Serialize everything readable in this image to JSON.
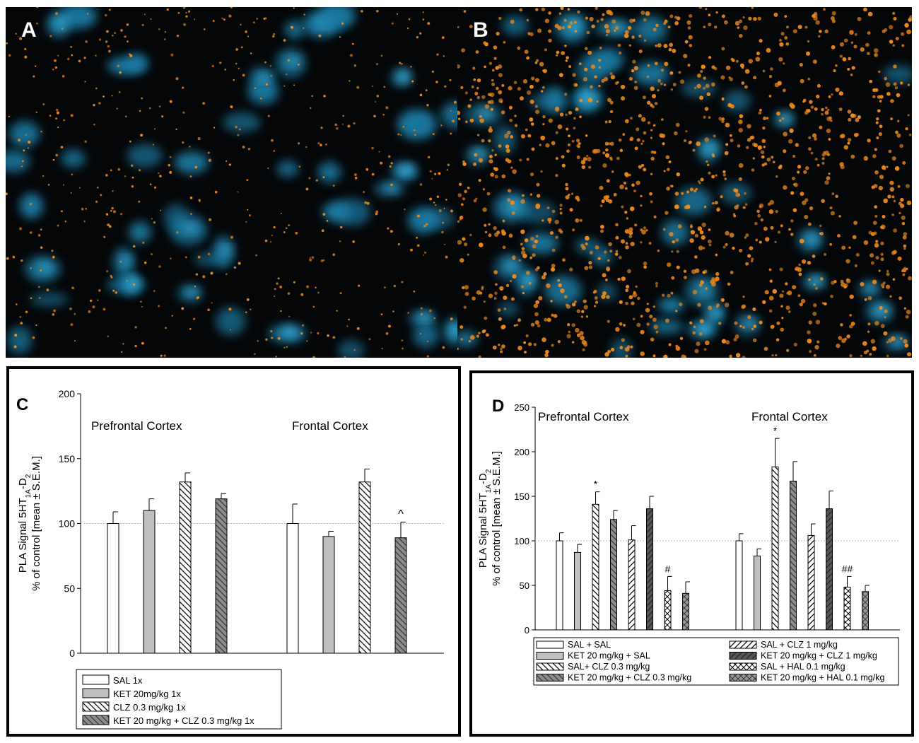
{
  "panels": {
    "a_label": "A",
    "b_label": "B",
    "c_label": "C",
    "d_label": "D"
  },
  "chart_data": [
    {
      "panel": "C",
      "type": "bar",
      "ylabel_lines": [
        "PLA Signal 5HT1A-D2",
        "% of control [mean ± S.E.M.]"
      ],
      "ylim": [
        0,
        200
      ],
      "yticks": [
        0,
        50,
        100,
        150,
        200
      ],
      "reference_line": 100,
      "groups": [
        "Prefrontal Cortex",
        "Frontal Cortex"
      ],
      "series": [
        {
          "name": "SAL 1x",
          "values": [
            100,
            100
          ],
          "errors": [
            9,
            15
          ],
          "fill": "#ffffff",
          "pattern": "none",
          "annotations": [
            "",
            ""
          ]
        },
        {
          "name": "KET 20mg/kg 1x",
          "values": [
            110,
            90
          ],
          "errors": [
            9,
            4
          ],
          "fill": "#bfbfbf",
          "pattern": "none",
          "annotations": [
            "",
            ""
          ]
        },
        {
          "name": "CLZ 0.3 mg/kg 1x",
          "values": [
            132,
            132
          ],
          "errors": [
            7,
            10
          ],
          "fill": "#ffffff",
          "pattern": "diag-back",
          "annotations": [
            "",
            ""
          ]
        },
        {
          "name": "KET 20 mg/kg + CLZ 0.3 mg/kg 1x",
          "values": [
            119,
            89
          ],
          "errors": [
            4,
            12
          ],
          "fill": "#8c8c8c",
          "pattern": "diag-back-dark",
          "annotations": [
            "",
            "^"
          ]
        }
      ]
    },
    {
      "panel": "D",
      "type": "bar",
      "ylabel_lines": [
        "PLA Signal 5HT1A-D2",
        "% of control [mean ± S.E.M.]"
      ],
      "ylim": [
        0,
        250
      ],
      "yticks": [
        0,
        50,
        100,
        150,
        200,
        250
      ],
      "reference_line": 100,
      "groups": [
        "Prefrontal Cortex",
        "Frontal Cortex"
      ],
      "series": [
        {
          "name": "SAL + SAL",
          "values": [
            100,
            100
          ],
          "errors": [
            9,
            8
          ],
          "fill": "#ffffff",
          "pattern": "none",
          "annotations": [
            "",
            ""
          ]
        },
        {
          "name": "KET 20 mg/kg + SAL",
          "values": [
            87,
            83
          ],
          "errors": [
            9,
            8
          ],
          "fill": "#bfbfbf",
          "pattern": "none",
          "annotations": [
            "",
            ""
          ]
        },
        {
          "name": "SAL+ CLZ 0.3 mg/kg",
          "values": [
            141,
            183
          ],
          "errors": [
            14,
            32
          ],
          "fill": "#ffffff",
          "pattern": "diag-back",
          "annotations": [
            "*",
            "*"
          ]
        },
        {
          "name": "KET 20 mg/kg + CLZ 0.3 mg/kg",
          "values": [
            124,
            167
          ],
          "errors": [
            10,
            22
          ],
          "fill": "#8c8c8c",
          "pattern": "diag-back-dark",
          "annotations": [
            "",
            ""
          ]
        },
        {
          "name": "SAL + CLZ 1 mg/kg",
          "values": [
            101,
            106
          ],
          "errors": [
            16,
            13
          ],
          "fill": "#ffffff",
          "pattern": "diag-fwd",
          "annotations": [
            "",
            ""
          ]
        },
        {
          "name": "KET 20 mg/kg + CLZ 1 mg/kg",
          "values": [
            136,
            136
          ],
          "errors": [
            14,
            20
          ],
          "fill": "#555555",
          "pattern": "diag-fwd-dark",
          "annotations": [
            "",
            ""
          ]
        },
        {
          "name": "SAL + HAL 0.1 mg/kg",
          "values": [
            44,
            48
          ],
          "errors": [
            16,
            12
          ],
          "fill": "#ffffff",
          "pattern": "cross",
          "annotations": [
            "#",
            "##"
          ]
        },
        {
          "name": "KET 20 mg/kg + HAL 0.1 mg/kg",
          "values": [
            41,
            43
          ],
          "errors": [
            13,
            7
          ],
          "fill": "#999999",
          "pattern": "cross-dark",
          "annotations": [
            "",
            ""
          ]
        }
      ]
    }
  ]
}
